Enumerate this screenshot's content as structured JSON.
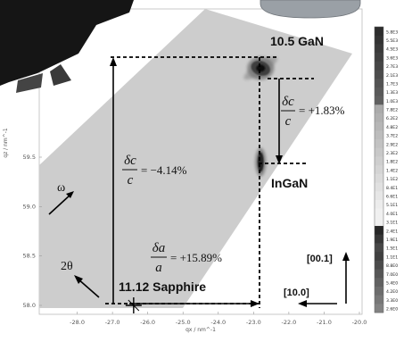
{
  "chart_data": {
    "type": "heatmap",
    "title": "",
    "xlabel": "qx / nm^-1",
    "ylabel": "qz / nm^-1",
    "xlim": [
      -29.0,
      -20.0
    ],
    "ylim": [
      57.9,
      60.7
    ],
    "x_ticks": [
      "-28.0",
      "-27.0",
      "-26.0",
      "-25.0",
      "-24.0",
      "-23.0",
      "-22.0",
      "-21.0",
      "-20.0"
    ],
    "y_ticks": [
      "58.0",
      "58.5",
      "59.0",
      "59.5"
    ],
    "grid": false,
    "peaks": [
      {
        "label": "10.5 GaN",
        "qx": -22.8,
        "qz": 60.4
      },
      {
        "label": "InGaN",
        "qx": -22.8,
        "qz": 59.45
      },
      {
        "label": "11.12 Sapphire",
        "qx": -26.4,
        "qz": 58.0
      }
    ],
    "annotations": {
      "strain_c_gan": {
        "numerator": "δc",
        "denominator": "c",
        "value": "= +1.83%"
      },
      "strain_c_sapphire": {
        "numerator": "δc",
        "denominator": "c",
        "value": "= −4.14%"
      },
      "strain_a": {
        "numerator": "δa",
        "denominator": "a",
        "value": "= +15.89%"
      },
      "omega": "ω",
      "two_theta": "2θ",
      "dir_001": "[00.1]",
      "dir_100": "[10.0]"
    },
    "colorbar": {
      "labels": [
        "5.8E3",
        "5.5E3",
        "4.5E3",
        "3.6E3",
        "2.7E3",
        "2.1E3",
        "1.7E3",
        "1.3E3",
        "1.0E3",
        "7.8E2",
        "6.2E2",
        "4.8E2",
        "3.7E2",
        "2.9E2",
        "2.3E2",
        "1.8E2",
        "1.4E2",
        "1.1E2",
        "8.4E1",
        "6.6E1",
        "5.1E1",
        "4.0E1",
        "3.1E1",
        "2.4E1",
        "1.9E1",
        "1.5E1",
        "1.1E1",
        "8.8E0",
        "7.0E0",
        "5.4E0",
        "4.2E0",
        "3.3E0",
        "2.6E0"
      ]
    }
  }
}
